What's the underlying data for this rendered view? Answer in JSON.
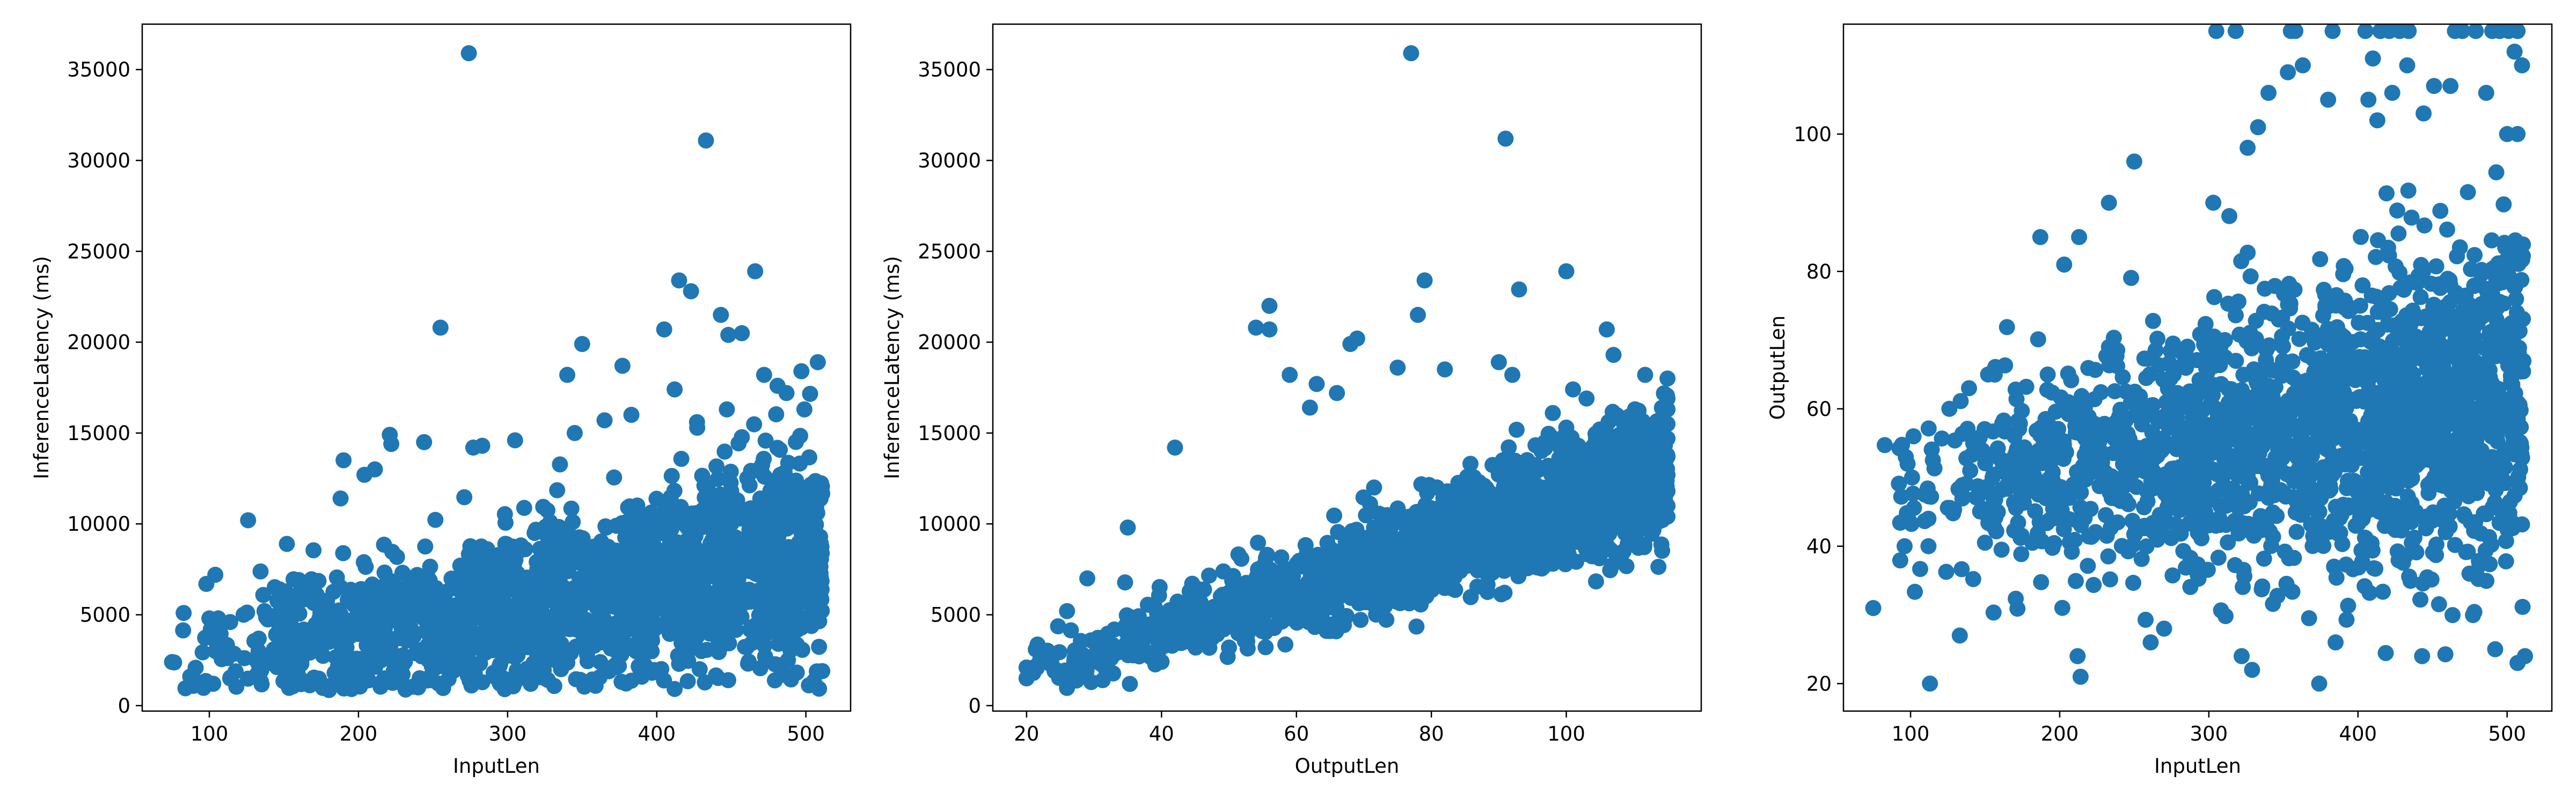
{
  "chart_data": [
    {
      "type": "scatter",
      "xlabel": "InputLen",
      "ylabel": "InferenceLatency (ms)",
      "xlim": [
        55,
        530
      ],
      "ylim": [
        -300,
        37500
      ],
      "xticks": [
        100,
        200,
        300,
        400,
        500
      ],
      "yticks": [
        0,
        5000,
        10000,
        15000,
        20000,
        25000,
        30000,
        35000
      ],
      "color": "#1f77b4",
      "cloud": {
        "x_range": [
          75,
          511
        ],
        "y_model": {
          "intercept": 1200,
          "slope": 14,
          "spread": 3000
        },
        "count": 1800,
        "seed": 11
      },
      "points": [
        {
          "x": 274,
          "y": 35900
        },
        {
          "x": 433,
          "y": 31100
        },
        {
          "x": 466,
          "y": 23900
        },
        {
          "x": 415,
          "y": 23400
        },
        {
          "x": 423,
          "y": 22800
        },
        {
          "x": 443,
          "y": 21500
        },
        {
          "x": 255,
          "y": 20800
        },
        {
          "x": 405,
          "y": 20700
        },
        {
          "x": 350,
          "y": 19900
        },
        {
          "x": 448,
          "y": 20400
        },
        {
          "x": 508,
          "y": 18900
        },
        {
          "x": 497,
          "y": 18400
        },
        {
          "x": 472,
          "y": 18200
        },
        {
          "x": 377,
          "y": 18700
        },
        {
          "x": 340,
          "y": 18200
        },
        {
          "x": 412,
          "y": 17400
        },
        {
          "x": 481,
          "y": 17600
        },
        {
          "x": 487,
          "y": 17200
        },
        {
          "x": 499,
          "y": 16300
        },
        {
          "x": 447,
          "y": 16300
        },
        {
          "x": 383,
          "y": 16000
        },
        {
          "x": 365,
          "y": 15700
        },
        {
          "x": 427,
          "y": 15600
        },
        {
          "x": 221,
          "y": 14900
        },
        {
          "x": 222,
          "y": 14400
        },
        {
          "x": 244,
          "y": 14500
        },
        {
          "x": 305,
          "y": 14600
        },
        {
          "x": 283,
          "y": 14300
        },
        {
          "x": 190,
          "y": 13500
        },
        {
          "x": 211,
          "y": 13000
        },
        {
          "x": 204,
          "y": 12700
        },
        {
          "x": 277,
          "y": 14200
        },
        {
          "x": 345,
          "y": 15000
        },
        {
          "x": 188,
          "y": 11400
        },
        {
          "x": 126,
          "y": 10200
        },
        {
          "x": 152,
          "y": 8900
        },
        {
          "x": 98,
          "y": 6700
        },
        {
          "x": 104,
          "y": 7200
        },
        {
          "x": 100,
          "y": 4800
        },
        {
          "x": 106,
          "y": 4800
        },
        {
          "x": 114,
          "y": 4600
        },
        {
          "x": 123,
          "y": 5000
        },
        {
          "x": 137,
          "y": 5200
        },
        {
          "x": 147,
          "y": 6400
        },
        {
          "x": 159,
          "y": 6000
        },
        {
          "x": 172,
          "y": 6100
        },
        {
          "x": 75,
          "y": 2400
        },
        {
          "x": 114,
          "y": 1500
        },
        {
          "x": 133,
          "y": 3000
        },
        {
          "x": 146,
          "y": 3200
        },
        {
          "x": 161,
          "y": 3100
        },
        {
          "x": 174,
          "y": 3300
        },
        {
          "x": 511,
          "y": 1900
        },
        {
          "x": 488,
          "y": 2500
        },
        {
          "x": 415,
          "y": 2300
        },
        {
          "x": 370,
          "y": 2100
        },
        {
          "x": 321,
          "y": 2000
        },
        {
          "x": 230,
          "y": 2300
        },
        {
          "x": 190,
          "y": 2500
        }
      ]
    },
    {
      "type": "scatter",
      "xlabel": "OutputLen",
      "ylabel": "InferenceLatency (ms)",
      "xlim": [
        15,
        120
      ],
      "ylim": [
        -300,
        37500
      ],
      "xticks": [
        20,
        40,
        60,
        80,
        100
      ],
      "yticks": [
        0,
        5000,
        10000,
        15000,
        20000,
        25000,
        30000,
        35000
      ],
      "color": "#1f77b4",
      "cloud": {
        "x_range": [
          20,
          115
        ],
        "y_model": {
          "intercept": -800,
          "slope": 120,
          "spread": 1800
        },
        "count": 1800,
        "seed": 23
      },
      "points": [
        {
          "x": 77,
          "y": 35900
        },
        {
          "x": 91,
          "y": 31200
        },
        {
          "x": 100,
          "y": 23900
        },
        {
          "x": 79,
          "y": 23400
        },
        {
          "x": 56,
          "y": 22000
        },
        {
          "x": 93,
          "y": 22900
        },
        {
          "x": 78,
          "y": 21500
        },
        {
          "x": 54,
          "y": 20800
        },
        {
          "x": 56,
          "y": 20700
        },
        {
          "x": 69,
          "y": 20200
        },
        {
          "x": 68,
          "y": 19900
        },
        {
          "x": 106,
          "y": 20700
        },
        {
          "x": 107,
          "y": 19300
        },
        {
          "x": 90,
          "y": 18900
        },
        {
          "x": 75,
          "y": 18600
        },
        {
          "x": 92,
          "y": 18200
        },
        {
          "x": 82,
          "y": 18500
        },
        {
          "x": 115,
          "y": 18000
        },
        {
          "x": 115,
          "y": 16900
        },
        {
          "x": 115,
          "y": 16300
        },
        {
          "x": 115,
          "y": 15500
        },
        {
          "x": 115,
          "y": 14700
        },
        {
          "x": 98,
          "y": 16100
        },
        {
          "x": 101,
          "y": 17400
        },
        {
          "x": 103,
          "y": 16900
        },
        {
          "x": 100,
          "y": 15300
        },
        {
          "x": 101,
          "y": 14500
        },
        {
          "x": 110,
          "y": 14500
        },
        {
          "x": 112,
          "y": 13800
        },
        {
          "x": 115,
          "y": 13700
        },
        {
          "x": 115,
          "y": 12700
        },
        {
          "x": 115,
          "y": 11800
        },
        {
          "x": 115,
          "y": 11000
        },
        {
          "x": 115,
          "y": 10400
        },
        {
          "x": 110,
          "y": 11200
        },
        {
          "x": 112,
          "y": 12200
        },
        {
          "x": 106,
          "y": 10900
        },
        {
          "x": 104,
          "y": 10600
        },
        {
          "x": 108,
          "y": 10200
        },
        {
          "x": 105,
          "y": 10100
        },
        {
          "x": 62,
          "y": 16400
        },
        {
          "x": 63,
          "y": 17700
        },
        {
          "x": 66,
          "y": 17200
        },
        {
          "x": 59,
          "y": 18200
        },
        {
          "x": 42,
          "y": 14200
        },
        {
          "x": 35,
          "y": 9800
        },
        {
          "x": 29,
          "y": 7000
        },
        {
          "x": 26,
          "y": 5200
        },
        {
          "x": 20,
          "y": 2100
        },
        {
          "x": 20,
          "y": 1500
        },
        {
          "x": 21,
          "y": 1800
        },
        {
          "x": 22,
          "y": 2500
        }
      ]
    },
    {
      "type": "scatter",
      "xlabel": "InputLen",
      "ylabel": "OutputLen",
      "xlim": [
        55,
        530
      ],
      "ylim": [
        16,
        116
      ],
      "xticks": [
        100,
        200,
        300,
        400,
        500
      ],
      "yticks": [
        20,
        40,
        60,
        80,
        100
      ],
      "color": "#1f77b4",
      "cloud": {
        "x_range": [
          75,
          511
        ],
        "y_model": {
          "intercept": 44,
          "slope": 0.035,
          "spread": 13
        },
        "count": 1800,
        "seed": 37
      },
      "points": [
        {
          "x": 305,
          "y": 115
        },
        {
          "x": 318,
          "y": 115
        },
        {
          "x": 355,
          "y": 115
        },
        {
          "x": 358,
          "y": 115
        },
        {
          "x": 383,
          "y": 115
        },
        {
          "x": 405,
          "y": 115
        },
        {
          "x": 415,
          "y": 115
        },
        {
          "x": 421,
          "y": 115
        },
        {
          "x": 428,
          "y": 115
        },
        {
          "x": 434,
          "y": 115
        },
        {
          "x": 465,
          "y": 115
        },
        {
          "x": 470,
          "y": 115
        },
        {
          "x": 479,
          "y": 115
        },
        {
          "x": 490,
          "y": 115
        },
        {
          "x": 495,
          "y": 115
        },
        {
          "x": 501,
          "y": 115
        },
        {
          "x": 507,
          "y": 115
        },
        {
          "x": 363,
          "y": 110
        },
        {
          "x": 410,
          "y": 111
        },
        {
          "x": 433,
          "y": 110
        },
        {
          "x": 505,
          "y": 112
        },
        {
          "x": 510,
          "y": 110
        },
        {
          "x": 380,
          "y": 105
        },
        {
          "x": 462,
          "y": 107
        },
        {
          "x": 486,
          "y": 106
        },
        {
          "x": 303,
          "y": 90
        },
        {
          "x": 250,
          "y": 96
        },
        {
          "x": 326,
          "y": 98
        },
        {
          "x": 333,
          "y": 101
        },
        {
          "x": 340,
          "y": 106
        },
        {
          "x": 353,
          "y": 109
        },
        {
          "x": 407,
          "y": 105
        },
        {
          "x": 413,
          "y": 102
        },
        {
          "x": 423,
          "y": 106
        },
        {
          "x": 444,
          "y": 103
        },
        {
          "x": 451,
          "y": 107
        },
        {
          "x": 500,
          "y": 100
        },
        {
          "x": 507,
          "y": 100
        },
        {
          "x": 233,
          "y": 90
        },
        {
          "x": 187,
          "y": 85
        },
        {
          "x": 213,
          "y": 85
        },
        {
          "x": 203,
          "y": 81
        },
        {
          "x": 112,
          "y": 44
        },
        {
          "x": 102,
          "y": 56
        },
        {
          "x": 98,
          "y": 52
        },
        {
          "x": 101,
          "y": 50
        },
        {
          "x": 96,
          "y": 40
        },
        {
          "x": 112,
          "y": 40
        },
        {
          "x": 75,
          "y": 31
        },
        {
          "x": 113,
          "y": 20
        },
        {
          "x": 133,
          "y": 27
        },
        {
          "x": 126,
          "y": 60
        },
        {
          "x": 140,
          "y": 51
        },
        {
          "x": 152,
          "y": 65
        },
        {
          "x": 155,
          "y": 50
        },
        {
          "x": 212,
          "y": 24
        },
        {
          "x": 214,
          "y": 21
        },
        {
          "x": 322,
          "y": 24
        },
        {
          "x": 329,
          "y": 22
        },
        {
          "x": 374,
          "y": 20
        },
        {
          "x": 385,
          "y": 26
        },
        {
          "x": 443,
          "y": 24
        },
        {
          "x": 492,
          "y": 25
        },
        {
          "x": 507,
          "y": 23
        },
        {
          "x": 512,
          "y": 24
        },
        {
          "x": 270,
          "y": 28
        },
        {
          "x": 261,
          "y": 26
        }
      ]
    }
  ]
}
